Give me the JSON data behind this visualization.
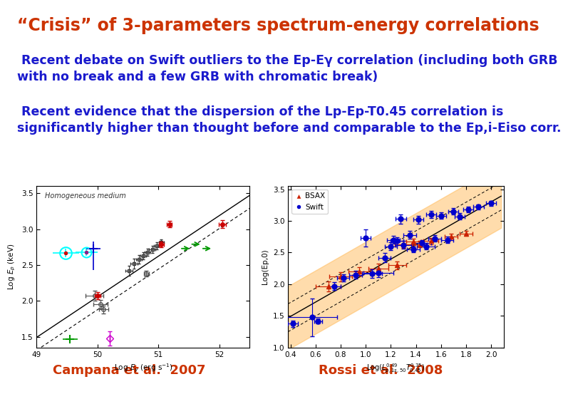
{
  "title": "“Crisis” of 3-parameters spectrum-energy correlations",
  "title_color": "#CC3300",
  "title_fontsize": 17,
  "subtitle1": " Recent debate on Swift outliers to the Ep-Eγ correlation (including both GRB\nwith no break and a few GRB with chromatic break)",
  "subtitle1_color": "#1A1ACD",
  "subtitle1_fontsize": 12.5,
  "subtitle2": " Recent evidence that the dispersion of the Lp-Ep-T0.45 correlation is\nsignificantly higher than thought before and comparable to the Ep,i-Eiso corr.",
  "subtitle2_color": "#1A1ACD",
  "subtitle2_fontsize": 12.5,
  "caption1": "Campana et al.  2007",
  "caption1_color": "#CC3300",
  "caption2": "Rossi et al.  2008",
  "caption2_color": "#CC3300",
  "caption_fontsize": 13,
  "bg_color": "#FFFFFF"
}
